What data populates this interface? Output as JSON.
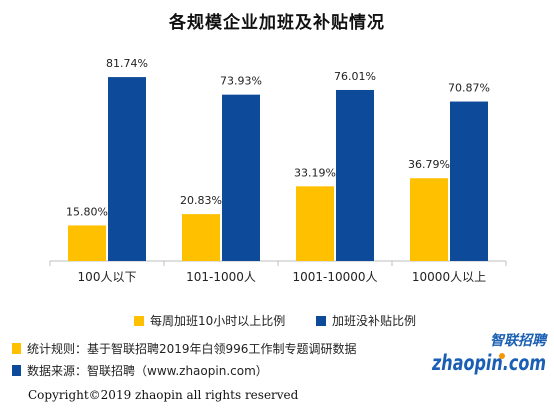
{
  "colors": {
    "series1": "#FFC000",
    "series2": "#0D4B9A",
    "axis": "#bfbfbf",
    "logo_blue": "#1a5fb4",
    "logo_orange": "#f39800"
  },
  "chart_data": {
    "type": "bar",
    "title": "各规模企业加班及补贴情况",
    "categories": [
      "100人以下",
      "101-1000人",
      "1001-10000人",
      "10000人以上"
    ],
    "series": [
      {
        "name": "每周加班10小时以上比例",
        "values": [
          15.8,
          20.83,
          33.19,
          36.79
        ],
        "labels": [
          "15.80%",
          "20.83%",
          "33.19%",
          "36.79%"
        ]
      },
      {
        "name": "加班没补贴比例",
        "values": [
          81.74,
          73.93,
          76.01,
          70.87
        ],
        "labels": [
          "81.74%",
          "73.93%",
          "76.01%",
          "70.87%"
        ]
      }
    ],
    "ylim": [
      0,
      100
    ],
    "grid": false,
    "legend_position": "bottom"
  },
  "notes": {
    "rule": "统计规则：基于智联招聘2019年白领996工作制专题调研数据",
    "source": "数据来源：智联招聘（www.zhaopin.com）"
  },
  "logo": {
    "top_text": "智联招聘",
    "main_text": "zhaopin.com"
  },
  "copyright": "Copyright©2019 zhaopin all rights reserved"
}
